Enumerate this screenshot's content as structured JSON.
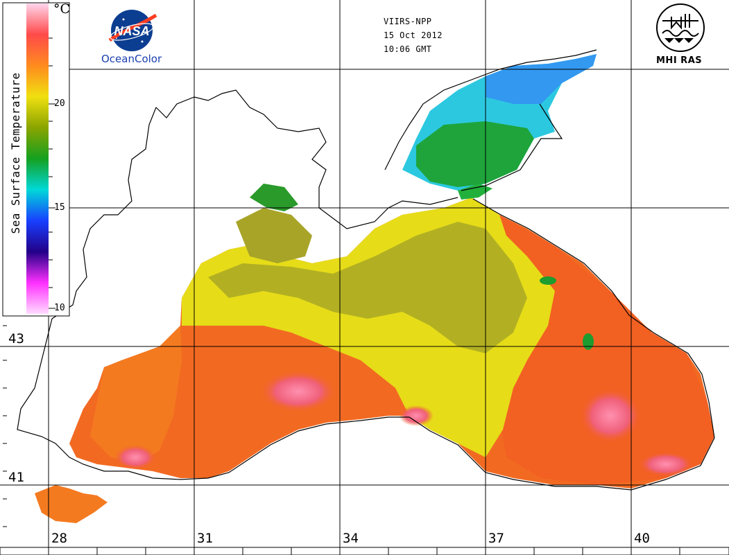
{
  "header": {
    "sensor": "VIIRS-NPP",
    "date": "15 Oct 2012",
    "time": "10:06 GMT"
  },
  "logos": {
    "nasa_wordmark": "NASA",
    "oceancolor": "OceanColor",
    "mhi": "MHI RAS"
  },
  "colorbar": {
    "title": "Sea Surface Temperature",
    "unit": "°C",
    "ticks": [
      "20",
      "15",
      "10"
    ],
    "colors": [
      "#ffd6ec",
      "#ff4a4a",
      "#ff8a1e",
      "#f0e010",
      "#8aa400",
      "#15a020",
      "#00d8d8",
      "#1840ff",
      "#220088",
      "#ff30ff",
      "#ffdcff"
    ]
  },
  "grid": {
    "latitudes": [
      "43",
      "41"
    ],
    "longitudes": [
      "28",
      "31",
      "34",
      "37",
      "40"
    ]
  },
  "palette": {
    "land": "#ffffff",
    "coast": "#000000",
    "hot_pink": "#f0607a",
    "orange_red": "#f26022",
    "orange": "#f79a24",
    "yellow": "#e8e018",
    "olive": "#a9ad26",
    "green": "#1e9c30",
    "cyan": "#25c8e0",
    "blue": "#2c8cf2"
  }
}
